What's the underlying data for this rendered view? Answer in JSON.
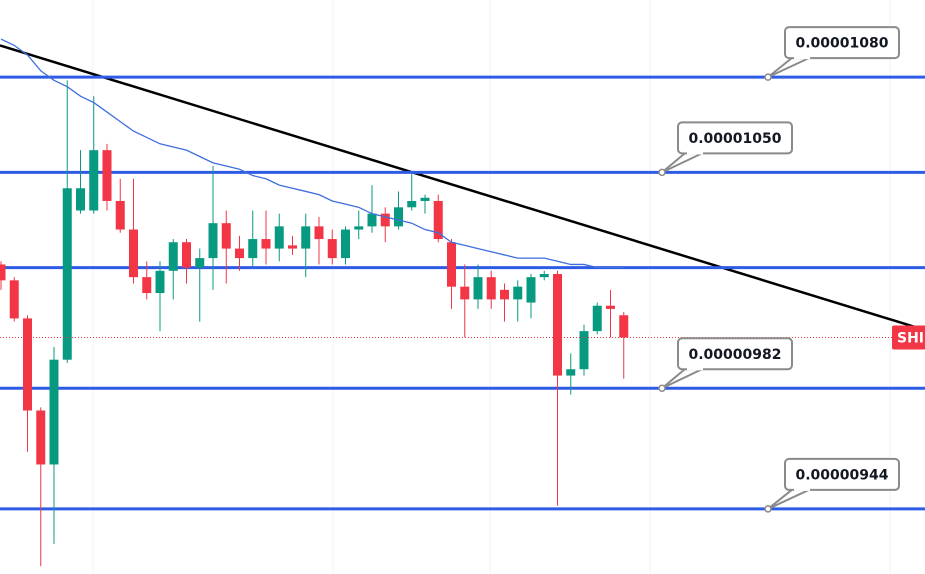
{
  "chart_data": {
    "type": "candlestick",
    "symbol": "SHI",
    "ylim": [
      9.235e-06,
      1.1043e-05
    ],
    "up_color": "#089981",
    "down_color": "#f23645",
    "candles": {
      "open": [
        1.021e-05,
        1.016e-05,
        1.004e-05,
        9.75e-06,
        9.58e-06,
        9.91e-06,
        1.038e-05,
        1.038e-05,
        1.057e-05,
        1.041e-05,
        1.032e-05,
        1.017e-05,
        1.012e-05,
        1.019e-05,
        1.028e-05,
        1.02e-05,
        1.023e-05,
        1.034e-05,
        1.026e-05,
        1.023e-05,
        1.029e-05,
        1.026e-05,
        1.027e-05,
        1.026e-05,
        1.033e-05,
        1.029e-05,
        1.023e-05,
        1.032e-05,
        1.033e-05,
        1.037e-05,
        1.033e-05,
        1.039e-05,
        1.041e-05,
        1.041e-05,
        1.028e-05,
        1.014e-05,
        1.01e-05,
        1.017e-05,
        1.013e-05,
        1.01e-05,
        1.009e-05,
        1.017e-05,
        1.018e-05,
        9.86e-06,
        9.88e-06,
        1e-05,
        1.008e-05,
        1.005e-05
      ],
      "high": [
        1.022e-05,
        1.017e-05,
        1.005e-05,
        9.76e-06,
        9.95e-06,
        1.079e-05,
        1.057e-05,
        1.074e-05,
        1.059e-05,
        1.048e-05,
        1.048e-05,
        1.022e-05,
        1.022e-05,
        1.029e-05,
        1.029e-05,
        1.026e-05,
        1.052e-05,
        1.038e-05,
        1.03e-05,
        1.038e-05,
        1.038e-05,
        1.037e-05,
        1.03e-05,
        1.037e-05,
        1.036e-05,
        1.032e-05,
        1.033e-05,
        1.038e-05,
        1.046e-05,
        1.039e-05,
        1.044e-05,
        1.05e-05,
        1.043e-05,
        1.043e-05,
        1.029e-05,
        1.021e-05,
        1.021e-05,
        1.019e-05,
        1.015e-05,
        1.016e-05,
        1.018e-05,
        1.019e-05,
        1.019e-05,
        9.93e-06,
        1.002e-05,
        1.009e-05,
        1.013e-05,
        1.006e-05
      ],
      "low": [
        1.013e-05,
        1.003e-05,
        9.62e-06,
        9.26e-06,
        9.33e-06,
        9.9e-06,
        1.037e-05,
        1.037e-05,
        1.038e-05,
        1.031e-05,
        1.015e-05,
        1.01e-05,
        1e-05,
        1.01e-05,
        1.015e-05,
        1.003e-05,
        1.013e-05,
        1.015e-05,
        1.019e-05,
        1.02e-05,
        1.021e-05,
        1.022e-05,
        1.024e-05,
        1.017e-05,
        1.021e-05,
        1.021e-05,
        1.021e-05,
        1.029e-05,
        1.031e-05,
        1.028e-05,
        1.032e-05,
        1.038e-05,
        1.037e-05,
        1.028e-05,
        1.007e-05,
        9.98e-06,
        1.007e-05,
        1.007e-05,
        1.003e-05,
        1.003e-05,
        1.004e-05,
        1.016e-05,
        9.45e-06,
        9.8e-06,
        9.86e-06,
        9.99e-06,
        9.98e-06,
        9.85e-06
      ],
      "close": [
        1.016e-05,
        1.004e-05,
        9.75e-06,
        9.58e-06,
        9.91e-06,
        1.045e-05,
        1.045e-05,
        1.057e-05,
        1.041e-05,
        1.032e-05,
        1.017e-05,
        1.012e-05,
        1.019e-05,
        1.028e-05,
        1.02e-05,
        1.023e-05,
        1.034e-05,
        1.026e-05,
        1.023e-05,
        1.029e-05,
        1.026e-05,
        1.033e-05,
        1.026e-05,
        1.033e-05,
        1.029e-05,
        1.023e-05,
        1.032e-05,
        1.033e-05,
        1.037e-05,
        1.033e-05,
        1.039e-05,
        1.041e-05,
        1.042e-05,
        1.029e-05,
        1.014e-05,
        1.01e-05,
        1.017e-05,
        1.01e-05,
        1.01e-05,
        1.014e-05,
        1.017e-05,
        1.018e-05,
        9.86e-06,
        9.88e-06,
        1e-05,
        1.008e-05,
        1.007e-05,
        9.98e-06
      ]
    },
    "ma": {
      "color": "#3f6fdc",
      "values": [
        1.092e-05,
        1.09e-05,
        1.087e-05,
        1.082e-05,
        1.079e-05,
        1.077e-05,
        1.074e-05,
        1.072e-05,
        1.069e-05,
        1.066e-05,
        1.063e-05,
        1.061e-05,
        1.059e-05,
        1.058e-05,
        1.057e-05,
        1.055e-05,
        1.053e-05,
        1.052e-05,
        1.051e-05,
        1.049e-05,
        1.048e-05,
        1.046e-05,
        1.045e-05,
        1.044e-05,
        1.043e-05,
        1.041e-05,
        1.04e-05,
        1.039e-05,
        1.037e-05,
        1.036e-05,
        1.035e-05,
        1.034e-05,
        1.032e-05,
        1.031e-05,
        1.028e-05,
        1.027e-05,
        1.026e-05,
        1.025e-05,
        1.024e-05,
        1.023e-05,
        1.023e-05,
        1.023e-05,
        1.022e-05,
        1.021e-05,
        1.021e-05,
        1.02e-05,
        1.02e-05,
        1.02e-05
      ]
    },
    "trendline": {
      "color": "#000000",
      "x": [
        0,
        70
      ],
      "values": [
        1.09e-05,
        1e-05
      ]
    },
    "levels": {
      "color": "#2f5ce6",
      "values": [
        1.08e-05,
        1.05e-05,
        1.02e-05,
        9.82e-06,
        9.44e-06
      ],
      "value_labels": [
        "0.00001080",
        "0.00001050",
        null,
        "0.00000982",
        "0.00000944"
      ]
    }
  }
}
